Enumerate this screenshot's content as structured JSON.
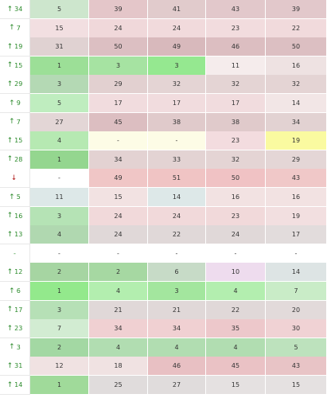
{
  "rows": [
    {
      "rank": {
        "dir": "up",
        "n": "34"
      },
      "cells": [
        "5",
        "39",
        "41",
        "43",
        "39"
      ],
      "colors": [
        "#cde6cd",
        "#e4c6c9",
        "#e1cbcc",
        "#e2c8cb",
        "#e2c8cb"
      ]
    },
    {
      "rank": {
        "dir": "up",
        "n": "7"
      },
      "cells": [
        "15",
        "24",
        "24",
        "23",
        "22"
      ],
      "colors": [
        "#f2dfe1",
        "#f0d8da",
        "#f1dadc",
        "#f2dcde",
        "#f1dadc"
      ]
    },
    {
      "rank": {
        "dir": "up",
        "n": "19"
      },
      "cells": [
        "31",
        "50",
        "49",
        "46",
        "50"
      ],
      "colors": [
        "#e0d2d2",
        "#dcbfc2",
        "#d8b9bc",
        "#dcbec1",
        "#dcbfc2"
      ]
    },
    {
      "rank": {
        "dir": "up",
        "n": "15"
      },
      "cells": [
        "1",
        "3",
        "3",
        "11",
        "16"
      ],
      "colors": [
        "#9cdf97",
        "#a6e3a2",
        "#95e890",
        "#f5ecec",
        "#eee2e2"
      ]
    },
    {
      "rank": {
        "dir": "up",
        "n": "29"
      },
      "cells": [
        "3",
        "29",
        "32",
        "32",
        "32"
      ],
      "colors": [
        "#b4d9b4",
        "#e2d0d0",
        "#e4d4d4",
        "#e4d4d4",
        "#e4d4d4"
      ]
    },
    {
      "rank": {
        "dir": "up",
        "n": "9"
      },
      "cells": [
        "5",
        "17",
        "17",
        "17",
        "14"
      ],
      "colors": [
        "#bfedbf",
        "#f1dcde",
        "#f1dcde",
        "#f1dcde",
        "#f2e6e6"
      ]
    },
    {
      "rank": {
        "dir": "up",
        "n": "7"
      },
      "cells": [
        "27",
        "45",
        "38",
        "38",
        "34"
      ],
      "colors": [
        "#e3d6d6",
        "#dcbec1",
        "#e0cacb",
        "#e0cacb",
        "#e2d2d2"
      ]
    },
    {
      "rank": {
        "dir": "up",
        "n": "15"
      },
      "cells": [
        "4",
        "-",
        "-",
        "23",
        "19"
      ],
      "colors": [
        "#b6e9b2",
        "#fdfce6",
        "#fdfce6",
        "#f3dcdf",
        "#fafaa0"
      ]
    },
    {
      "rank": {
        "dir": "up",
        "n": "28"
      },
      "cells": [
        "1",
        "34",
        "33",
        "32",
        "29"
      ],
      "colors": [
        "#94d68f",
        "#e3d2d2",
        "#e3d3d3",
        "#e4d4d4",
        "#e4d6d6"
      ]
    },
    {
      "rank": {
        "dir": "down",
        "n": ""
      },
      "cells": [
        "-",
        "49",
        "51",
        "50",
        "43"
      ],
      "colors": [
        "#ffffff",
        "#f0c6c6",
        "#f0c4c4",
        "#f0c2c4",
        "#f0c8c8"
      ]
    },
    {
      "rank": {
        "dir": "up",
        "n": "5"
      },
      "cells": [
        "11",
        "15",
        "14",
        "16",
        "16"
      ],
      "colors": [
        "#dde8e8",
        "#f2e2e2",
        "#dde8e8",
        "#f2e2e2",
        "#f2e2e2"
      ]
    },
    {
      "rank": {
        "dir": "up",
        "n": "16"
      },
      "cells": [
        "3",
        "24",
        "24",
        "23",
        "19"
      ],
      "colors": [
        "#b5e3b5",
        "#f1d9da",
        "#f1d9da",
        "#f1d9da",
        "#f2dfe0"
      ]
    },
    {
      "rank": {
        "dir": "up",
        "n": "13"
      },
      "cells": [
        "4",
        "24",
        "22",
        "24",
        "17"
      ],
      "colors": [
        "#b0d8b0",
        "#e0d8d8",
        "#e0d8d8",
        "#e0d8d8",
        "#e2dcdc"
      ]
    },
    {
      "rank": {
        "dir": "none",
        "n": "-"
      },
      "cells": [
        "-",
        "-",
        "-",
        "-",
        "-"
      ],
      "colors": [
        "#ffffff",
        "#ffffff",
        "#ffffff",
        "#ffffff",
        "#ffffff"
      ]
    },
    {
      "rank": {
        "dir": "up",
        "n": "12"
      },
      "cells": [
        "2",
        "2",
        "6",
        "10",
        "14"
      ],
      "colors": [
        "#a6d5a2",
        "#a6d8a2",
        "#c7dbc7",
        "#eedcee",
        "#dde4e4"
      ]
    },
    {
      "rank": {
        "dir": "up",
        "n": "6"
      },
      "cells": [
        "1",
        "4",
        "3",
        "4",
        "7"
      ],
      "colors": [
        "#93e98c",
        "#b3eeaf",
        "#a3e69e",
        "#b3eeaf",
        "#c9ecc7"
      ]
    },
    {
      "rank": {
        "dir": "up",
        "n": "17"
      },
      "cells": [
        "3",
        "21",
        "21",
        "22",
        "20"
      ],
      "colors": [
        "#b6e0b6",
        "#e0d8d8",
        "#e0d8d8",
        "#e0d8d8",
        "#e2dada"
      ]
    },
    {
      "rank": {
        "dir": "up",
        "n": "23"
      },
      "cells": [
        "7",
        "34",
        "34",
        "35",
        "30"
      ],
      "colors": [
        "#d2ecd2",
        "#f0d0d2",
        "#f0d0d2",
        "#edc8cb",
        "#f0d2d4"
      ]
    },
    {
      "rank": {
        "dir": "up",
        "n": "3"
      },
      "cells": [
        "2",
        "4",
        "4",
        "4",
        "5"
      ],
      "colors": [
        "#a3d8a3",
        "#b1ddb1",
        "#b1ddb1",
        "#b1ddb1",
        "#bde2bd"
      ]
    },
    {
      "rank": {
        "dir": "up",
        "n": "31"
      },
      "cells": [
        "12",
        "18",
        "46",
        "45",
        "43"
      ],
      "colors": [
        "#f0e2e2",
        "#f0e2e2",
        "#e8c0c3",
        "#eac2c5",
        "#e8c4c6"
      ]
    },
    {
      "rank": {
        "dir": "up",
        "n": "14"
      },
      "cells": [
        "1",
        "25",
        "27",
        "15",
        "15"
      ],
      "colors": [
        "#a0da9a",
        "#e0dcdc",
        "#e0dcdc",
        "#e5e1e1",
        "#e5e1e1"
      ]
    }
  ]
}
